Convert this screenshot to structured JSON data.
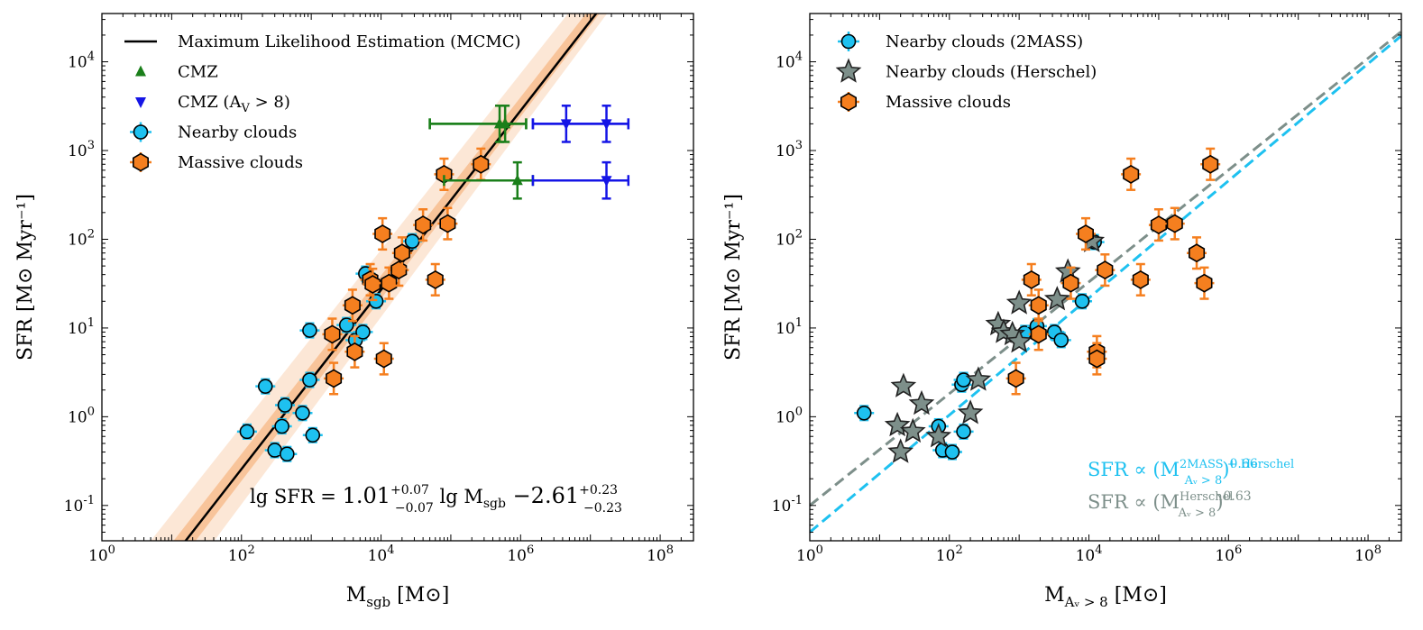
{
  "chart_data": [
    {
      "type": "scatter",
      "xscale": "log",
      "yscale": "log",
      "xlim": [
        1,
        300000000
      ],
      "ylim": [
        0.04,
        35000
      ],
      "xlabel_main": "M",
      "xlabel_sub": "sgb",
      "xlabel_unit": "[M⊙]",
      "ylabel": "SFR [M⊙ Myr⁻¹]",
      "xticks": [
        "10^0",
        "10^2",
        "10^4",
        "10^6",
        "10^8"
      ],
      "yticks": [
        "10^-1",
        "10^0",
        "10^1",
        "10^2",
        "10^3",
        "10^4"
      ],
      "legend": {
        "position": "top-left",
        "entries": [
          {
            "label": "Maximum Likelihood Estimation (MCMC)",
            "marker": "line",
            "color": "#000000"
          },
          {
            "label": "CMZ",
            "marker": "triangle-up",
            "color": "#1a7f1a"
          },
          {
            "label": "CMZ (A",
            "label_sub": "V",
            "label_tail": " > 8)",
            "marker": "triangle-down",
            "color": "#1515e6"
          },
          {
            "label": "Nearby clouds",
            "marker": "circle",
            "color": "#1ec1f0"
          },
          {
            "label": "Massive clouds",
            "marker": "hexagon",
            "color": "#f57f1f"
          }
        ]
      },
      "fit": {
        "slope": 1.01,
        "intercept": -2.61,
        "equation": {
          "prefix": "lg SFR = ",
          "slope": "1.01",
          "slope_up": "+0.07",
          "slope_dn": "−0.07",
          "mid": " lg M",
          "mid_sub": "sgb",
          "intercept": " −2.61",
          "int_up": "+0.23",
          "int_dn": "−0.23"
        }
      },
      "series": [
        {
          "name": "Nearby clouds",
          "marker": "circle",
          "color": "#1ec1f0",
          "points": [
            [
              120,
              0.68
            ],
            [
              220,
              2.2
            ],
            [
              300,
              0.42
            ],
            [
              380,
              0.78
            ],
            [
              420,
              1.35
            ],
            [
              450,
              0.38
            ],
            [
              750,
              1.1
            ],
            [
              950,
              9.4
            ],
            [
              950,
              2.6
            ],
            [
              1050,
              0.62
            ],
            [
              3200,
              10.8
            ],
            [
              4300,
              7.3
            ],
            [
              5500,
              9
            ],
            [
              6000,
              41
            ],
            [
              8500,
              20
            ],
            [
              28000,
              95
            ]
          ]
        },
        {
          "name": "Massive clouds",
          "marker": "hexagon",
          "color": "#f57f1f",
          "points": [
            [
              2000,
              8.5
            ],
            [
              2100,
              2.7
            ],
            [
              3900,
              18
            ],
            [
              4200,
              5.4
            ],
            [
              7000,
              35
            ],
            [
              7600,
              31
            ],
            [
              10500,
              115
            ],
            [
              11000,
              4.5
            ],
            [
              13000,
              32
            ],
            [
              18000,
              45
            ],
            [
              20000,
              70
            ],
            [
              40000,
              145
            ],
            [
              60000,
              35
            ],
            [
              80000,
              540
            ],
            [
              90000,
              150
            ],
            [
              270000,
              700
            ]
          ]
        },
        {
          "name": "CMZ",
          "marker": "triangle-up",
          "color": "#1a7f1a",
          "points": [
            [
              500000,
              2000
            ],
            [
              600000,
              2000
            ],
            [
              900000,
              460
            ]
          ],
          "yerr_factor": [
            1.6,
            1.6,
            1.6
          ],
          "xerr": [
            [
              50000,
              1200000
            ],
            [
              50000,
              1200000
            ],
            [
              80000,
              1500000
            ]
          ]
        },
        {
          "name": "CMZ (A_V > 8)",
          "marker": "triangle-down",
          "color": "#1515e6",
          "points": [
            [
              4500000,
              2000
            ],
            [
              17000000,
              2000
            ],
            [
              17000000,
              460
            ]
          ],
          "yerr_factor": [
            1.6,
            1.6,
            1.6
          ],
          "xerr": [
            [
              1500000,
              35000000
            ],
            [
              1500000,
              35000000
            ],
            [
              1500000,
              35000000
            ]
          ]
        }
      ]
    },
    {
      "type": "scatter",
      "xscale": "log",
      "yscale": "log",
      "xlim": [
        1,
        300000000
      ],
      "ylim": [
        0.04,
        35000
      ],
      "xlabel_main": "M",
      "xlabel_sub": "Aᵥ > 8",
      "xlabel_unit": "[M⊙]",
      "ylabel": "SFR [M⊙ Myr⁻¹]",
      "xticks": [
        "10^0",
        "10^2",
        "10^4",
        "10^6",
        "10^8"
      ],
      "yticks": [
        "10^-1",
        "10^0",
        "10^1",
        "10^2",
        "10^3",
        "10^4"
      ],
      "legend": {
        "position": "top-left",
        "entries": [
          {
            "label": "Nearby clouds (2MASS)",
            "marker": "circle",
            "color": "#1ec1f0"
          },
          {
            "label": "Nearby clouds (Herschel)",
            "marker": "star",
            "color": "#7d8f8a"
          },
          {
            "label": "Massive clouds",
            "marker": "hexagon",
            "color": "#f57f1f"
          }
        ]
      },
      "relations": [
        {
          "label": "SFR ∝ (M",
          "sup": "2MASS + Herschel",
          "sub": "Aᵥ > 8",
          "exp": "0.66",
          "exponent": 0.66,
          "norm": 0.05,
          "color": "#1ec1f0"
        },
        {
          "label": "SFR ∝ (M",
          "sup": "Herschel",
          "sub": "Aᵥ > 8",
          "exp": "0.63",
          "exponent": 0.63,
          "norm": 0.1,
          "color": "#7d8f8a"
        }
      ],
      "series": [
        {
          "name": "Nearby clouds (2MASS)",
          "marker": "circle",
          "color": "#1ec1f0",
          "points": [
            [
              6,
              1.1
            ],
            [
              70,
              0.78
            ],
            [
              80,
              0.42
            ],
            [
              110,
              0.4
            ],
            [
              150,
              2.3
            ],
            [
              160,
              2.6
            ],
            [
              160,
              0.68
            ],
            [
              1200,
              8.8
            ],
            [
              1800,
              10.5
            ],
            [
              3200,
              9
            ],
            [
              4000,
              7.3
            ],
            [
              8000,
              20
            ],
            [
              12000,
              93
            ]
          ]
        },
        {
          "name": "Nearby clouds (Herschel)",
          "marker": "star",
          "color": "#7d8f8a",
          "points": [
            [
              18,
              0.8
            ],
            [
              20,
              0.4
            ],
            [
              22,
              2.2
            ],
            [
              30,
              0.68
            ],
            [
              40,
              1.4
            ],
            [
              70,
              0.6
            ],
            [
              200,
              1.1
            ],
            [
              260,
              2.6
            ],
            [
              500,
              11
            ],
            [
              600,
              9
            ],
            [
              800,
              8.5
            ],
            [
              1000,
              7
            ],
            [
              1000,
              19
            ],
            [
              3500,
              21
            ],
            [
              5000,
              43
            ],
            [
              11000,
              95
            ]
          ]
        },
        {
          "name": "Massive clouds",
          "marker": "hexagon",
          "color": "#f57f1f",
          "points": [
            [
              900,
              2.7
            ],
            [
              1500,
              35
            ],
            [
              1900,
              18
            ],
            [
              1900,
              8.5
            ],
            [
              5500,
              32
            ],
            [
              9000,
              115
            ],
            [
              13000,
              5.4
            ],
            [
              13000,
              4.5
            ],
            [
              17000,
              45
            ],
            [
              40000,
              540
            ],
            [
              55000,
              35
            ],
            [
              100000,
              145
            ],
            [
              170000,
              150
            ],
            [
              350000,
              70
            ],
            [
              450000,
              32
            ],
            [
              550000,
              700
            ]
          ]
        }
      ]
    }
  ]
}
